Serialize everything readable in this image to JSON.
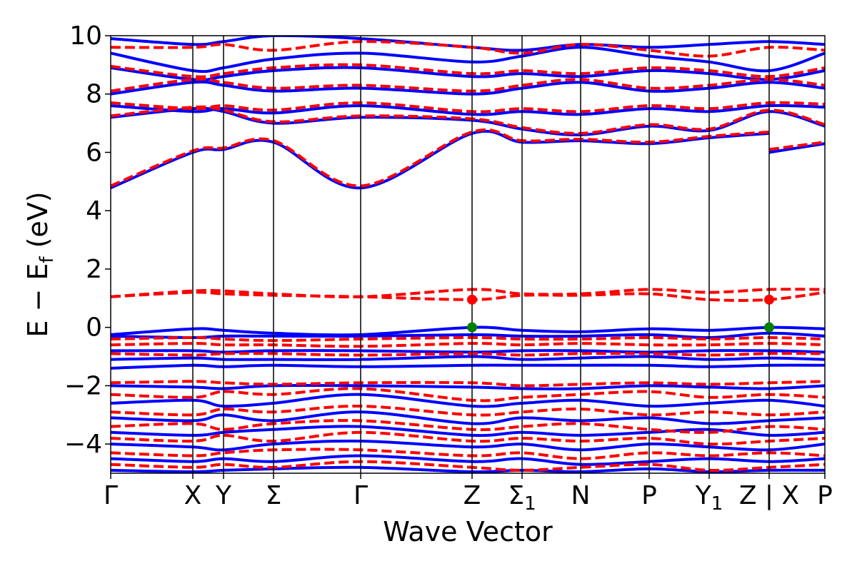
{
  "chart_data": {
    "type": "line",
    "xlabel": "Wave Vector",
    "ylabel_parts": {
      "main": "E − E",
      "sub": "f",
      "unit": "(eV)"
    },
    "ylim": [
      -5,
      10
    ],
    "yticks": [
      {
        "value": 10,
        "label": "10"
      },
      {
        "value": 8,
        "label": "8"
      },
      {
        "value": 6,
        "label": "6"
      },
      {
        "value": 4,
        "label": "4"
      },
      {
        "value": 2,
        "label": "2"
      },
      {
        "value": 0,
        "label": "0"
      },
      {
        "value": -2,
        "label": "−2"
      },
      {
        "value": -4,
        "label": "−4"
      }
    ],
    "kpoints": [
      {
        "label": "Γ",
        "pos": 0.0
      },
      {
        "label": "X",
        "pos": 0.115
      },
      {
        "label": "Y",
        "pos": 0.158
      },
      {
        "label": "Σ",
        "pos": 0.228
      },
      {
        "label": "Γ",
        "pos": 0.35
      },
      {
        "label": "Z",
        "pos": 0.506
      },
      {
        "label": "Σ",
        "sub": "1",
        "pos": 0.576
      },
      {
        "label": "N",
        "pos": 0.658
      },
      {
        "label": "P",
        "pos": 0.754
      },
      {
        "label": "Y",
        "sub": "1",
        "pos": 0.838
      },
      {
        "label": "Z | X",
        "pos": 0.922
      },
      {
        "label": "P",
        "pos": 1.0
      }
    ],
    "colors": {
      "solid_series": "#0000ff",
      "dashed_series": "#ff0000",
      "cbm": "#ff0000",
      "vbm": "#008000"
    },
    "markers": [
      {
        "kind": "cbm",
        "pos": 0.506,
        "energy": 0.95
      },
      {
        "kind": "vbm",
        "pos": 0.506,
        "energy": 0.0
      },
      {
        "kind": "cbm",
        "pos": 0.922,
        "energy": 0.95
      },
      {
        "kind": "vbm",
        "pos": 0.922,
        "energy": 0.0
      }
    ],
    "series": [
      {
        "style": "solid",
        "x": [
          0,
          0.115,
          0.158,
          0.228,
          0.35,
          0.506,
          0.576,
          0.658,
          0.754,
          0.838,
          0.922
        ],
        "y": [
          4.78,
          6.0,
          6.1,
          6.35,
          4.78,
          6.65,
          6.35,
          6.4,
          6.3,
          6.5,
          6.65
        ]
      },
      {
        "style": "solid",
        "x": [
          0.922,
          1.0
        ],
        "y": [
          6.0,
          6.3
        ]
      },
      {
        "style": "dashed",
        "x": [
          0,
          0.115,
          0.158,
          0.228,
          0.35,
          0.506,
          0.576,
          0.658,
          0.754,
          0.838,
          0.922
        ],
        "y": [
          4.85,
          6.05,
          6.15,
          6.4,
          4.85,
          6.7,
          6.4,
          6.45,
          6.35,
          6.55,
          6.7
        ]
      },
      {
        "style": "dashed",
        "x": [
          0.922,
          1.0
        ],
        "y": [
          6.1,
          6.35
        ]
      },
      {
        "style": "solid",
        "x": [
          0,
          0.115,
          0.158,
          0.228,
          0.35,
          0.506,
          0.576,
          0.658,
          0.754,
          0.838,
          0.922,
          1.0
        ],
        "y": [
          7.2,
          7.5,
          7.4,
          7.0,
          7.2,
          7.1,
          6.8,
          6.6,
          6.9,
          6.75,
          7.4,
          6.9
        ]
      },
      {
        "style": "dashed",
        "x": [
          0,
          0.115,
          0.158,
          0.228,
          0.35,
          0.506,
          0.576,
          0.658,
          0.754,
          0.838,
          0.922,
          1.0
        ],
        "y": [
          7.25,
          7.55,
          7.45,
          7.05,
          7.25,
          7.15,
          6.85,
          6.65,
          6.95,
          6.8,
          7.45,
          6.95
        ]
      },
      {
        "style": "solid",
        "x": [
          0,
          0.115,
          0.158,
          0.228,
          0.35,
          0.506,
          0.576,
          0.658,
          0.754,
          0.838,
          0.922,
          1.0
        ],
        "y": [
          7.6,
          7.4,
          7.5,
          7.35,
          7.6,
          7.3,
          7.4,
          7.3,
          7.5,
          7.4,
          7.6,
          7.55
        ]
      },
      {
        "style": "dashed",
        "x": [
          0,
          0.115,
          0.158,
          0.228,
          0.35,
          0.506,
          0.576,
          0.658,
          0.754,
          0.838,
          0.922,
          1.0
        ],
        "y": [
          7.7,
          7.5,
          7.6,
          7.45,
          7.7,
          7.4,
          7.5,
          7.4,
          7.6,
          7.5,
          7.7,
          7.65
        ]
      },
      {
        "style": "solid",
        "x": [
          0,
          0.115,
          0.158,
          0.228,
          0.35,
          0.506,
          0.576,
          0.658,
          0.754,
          0.838,
          0.922,
          1.0
        ],
        "y": [
          8.0,
          8.4,
          8.3,
          8.1,
          8.2,
          8.0,
          8.2,
          8.4,
          8.1,
          8.2,
          8.4,
          8.2
        ]
      },
      {
        "style": "dashed",
        "x": [
          0,
          0.115,
          0.158,
          0.228,
          0.35,
          0.506,
          0.576,
          0.658,
          0.754,
          0.838,
          0.922,
          1.0
        ],
        "y": [
          8.1,
          8.5,
          8.4,
          8.2,
          8.3,
          8.1,
          8.3,
          8.5,
          8.2,
          8.3,
          8.5,
          8.3
        ]
      },
      {
        "style": "solid",
        "x": [
          0,
          0.115,
          0.158,
          0.228,
          0.35,
          0.506,
          0.576,
          0.658,
          0.754,
          0.838,
          0.922,
          1.0
        ],
        "y": [
          8.9,
          8.5,
          8.6,
          8.8,
          8.9,
          8.6,
          8.7,
          8.6,
          8.8,
          8.7,
          8.5,
          8.8
        ]
      },
      {
        "style": "dashed",
        "x": [
          0,
          0.115,
          0.158,
          0.228,
          0.35,
          0.506,
          0.576,
          0.658,
          0.754,
          0.838,
          0.922,
          1.0
        ],
        "y": [
          8.95,
          8.6,
          8.7,
          8.9,
          9.0,
          8.7,
          8.8,
          8.7,
          8.9,
          8.8,
          8.6,
          8.9
        ]
      },
      {
        "style": "solid",
        "x": [
          0,
          0.115,
          0.158,
          0.228,
          0.35,
          0.506,
          0.576,
          0.658,
          0.754,
          0.838,
          0.922,
          1.0
        ],
        "y": [
          9.4,
          8.8,
          8.9,
          9.2,
          9.4,
          9.1,
          9.3,
          9.6,
          9.3,
          9.1,
          8.8,
          9.4
        ]
      },
      {
        "style": "dashed",
        "x": [
          0,
          0.115,
          0.158,
          0.228,
          0.35,
          0.506,
          0.576,
          0.658,
          0.754,
          0.838,
          0.922,
          1.0
        ],
        "y": [
          9.6,
          9.6,
          9.7,
          9.5,
          9.8,
          9.6,
          9.4,
          9.7,
          9.5,
          9.3,
          9.6,
          9.5
        ]
      },
      {
        "style": "solid",
        "x": [
          0,
          0.115,
          0.158,
          0.228,
          0.35,
          0.506,
          0.576,
          0.658,
          0.754,
          0.838,
          0.922,
          1.0
        ],
        "y": [
          9.9,
          9.7,
          9.8,
          10.0,
          9.9,
          9.6,
          9.5,
          9.7,
          9.6,
          9.7,
          9.8,
          9.7
        ]
      },
      {
        "style": "dashed",
        "x": [
          0,
          0.115,
          0.158,
          0.228,
          0.35,
          0.506,
          0.576,
          0.658,
          0.754,
          0.838,
          0.922,
          1.0
        ],
        "y": [
          1.05,
          1.25,
          1.25,
          1.15,
          1.05,
          1.3,
          1.15,
          1.15,
          1.3,
          1.2,
          1.3,
          1.3
        ]
      },
      {
        "style": "dashed",
        "x": [
          0,
          0.115,
          0.158,
          0.228,
          0.35,
          0.506,
          0.576,
          0.658,
          0.754,
          0.838,
          0.922,
          1.0
        ],
        "y": [
          1.05,
          1.2,
          1.15,
          1.1,
          1.05,
          0.95,
          1.1,
          1.1,
          1.15,
          0.95,
          0.95,
          1.2
        ]
      },
      {
        "style": "solid",
        "x": [
          0,
          0.115,
          0.158,
          0.228,
          0.35,
          0.506,
          0.576,
          0.658,
          0.754,
          0.838,
          0.922,
          1.0
        ],
        "y": [
          -0.25,
          -0.05,
          -0.1,
          -0.2,
          -0.25,
          0.0,
          -0.1,
          -0.15,
          -0.05,
          -0.1,
          0.0,
          -0.05
        ]
      },
      {
        "style": "solid",
        "x": [
          0,
          0.115,
          0.158,
          0.228,
          0.35,
          0.506,
          0.576,
          0.658,
          0.754,
          0.838,
          0.922,
          1.0
        ],
        "y": [
          -0.3,
          -0.35,
          -0.3,
          -0.3,
          -0.3,
          -0.25,
          -0.3,
          -0.3,
          -0.25,
          -0.35,
          -0.2,
          -0.3
        ]
      },
      {
        "style": "dashed",
        "x": [
          0,
          0.115,
          0.158,
          0.228,
          0.35,
          0.506,
          0.576,
          0.658,
          0.754,
          0.838,
          0.922,
          1.0
        ],
        "y": [
          -0.4,
          -0.35,
          -0.4,
          -0.45,
          -0.4,
          -0.35,
          -0.4,
          -0.4,
          -0.35,
          -0.4,
          -0.35,
          -0.4
        ]
      },
      {
        "style": "dashed",
        "x": [
          0,
          0.115,
          0.158,
          0.228,
          0.35,
          0.506,
          0.576,
          0.658,
          0.754,
          0.838,
          0.922,
          1.0
        ],
        "y": [
          -0.6,
          -0.55,
          -0.6,
          -0.6,
          -0.65,
          -0.55,
          -0.6,
          -0.55,
          -0.6,
          -0.6,
          -0.55,
          -0.6
        ]
      },
      {
        "style": "solid",
        "x": [
          0,
          0.115,
          0.158,
          0.228,
          0.35,
          0.506,
          0.576,
          0.658,
          0.754,
          0.838,
          0.922,
          1.0
        ],
        "y": [
          -0.8,
          -0.8,
          -0.85,
          -0.8,
          -0.8,
          -0.85,
          -0.8,
          -0.8,
          -0.85,
          -0.8,
          -0.8,
          -0.85
        ]
      },
      {
        "style": "dashed",
        "x": [
          0,
          0.115,
          0.158,
          0.228,
          0.35,
          0.506,
          0.576,
          0.658,
          0.754,
          0.838,
          0.922,
          1.0
        ],
        "y": [
          -0.9,
          -0.95,
          -0.9,
          -0.9,
          -0.95,
          -0.9,
          -0.95,
          -0.9,
          -0.9,
          -0.95,
          -0.9,
          -0.9
        ]
      },
      {
        "style": "solid",
        "x": [
          0,
          0.115,
          0.158,
          0.228,
          0.35,
          0.506,
          0.576,
          0.658,
          0.754,
          0.838,
          0.922,
          1.0
        ],
        "y": [
          -1.1,
          -1.05,
          -1.1,
          -1.1,
          -1.1,
          -1.0,
          -1.1,
          -1.05,
          -1.0,
          -1.1,
          -1.05,
          -1.1
        ]
      },
      {
        "style": "solid",
        "x": [
          0,
          0.115,
          0.158,
          0.228,
          0.35,
          0.506,
          0.576,
          0.658,
          0.754,
          0.838,
          0.922,
          1.0
        ],
        "y": [
          -1.4,
          -1.3,
          -1.35,
          -1.3,
          -1.35,
          -1.3,
          -1.3,
          -1.3,
          -1.3,
          -1.35,
          -1.3,
          -1.3
        ]
      },
      {
        "style": "dashed",
        "x": [
          0,
          0.115,
          0.158,
          0.228,
          0.35,
          0.506,
          0.576,
          0.658,
          0.754,
          0.838,
          0.922,
          1.0
        ],
        "y": [
          -1.9,
          -1.85,
          -1.9,
          -1.95,
          -1.9,
          -1.9,
          -2.0,
          -1.95,
          -1.9,
          -1.95,
          -1.9,
          -1.85
        ]
      },
      {
        "style": "solid",
        "x": [
          0,
          0.115,
          0.158,
          0.228,
          0.35,
          0.506,
          0.576,
          0.658,
          0.754,
          0.838,
          0.922,
          1.0
        ],
        "y": [
          -2.0,
          -2.05,
          -2.1,
          -2.0,
          -2.0,
          -2.05,
          -2.1,
          -2.1,
          -2.0,
          -2.05,
          -2.1,
          -2.0
        ]
      },
      {
        "style": "dashed",
        "x": [
          0,
          0.115,
          0.158,
          0.228,
          0.35,
          0.506,
          0.576,
          0.658,
          0.754,
          0.838,
          0.922,
          1.0
        ],
        "y": [
          -2.3,
          -2.4,
          -2.2,
          -2.3,
          -2.1,
          -2.5,
          -2.4,
          -2.3,
          -2.2,
          -2.4,
          -2.3,
          -2.4
        ]
      },
      {
        "style": "solid",
        "x": [
          0,
          0.115,
          0.158,
          0.228,
          0.35,
          0.506,
          0.576,
          0.658,
          0.754,
          0.838,
          0.922,
          1.0
        ],
        "y": [
          -2.6,
          -2.5,
          -2.7,
          -2.6,
          -2.3,
          -2.7,
          -2.6,
          -2.5,
          -2.7,
          -2.6,
          -2.5,
          -2.7
        ]
      },
      {
        "style": "dashed",
        "x": [
          0,
          0.115,
          0.158,
          0.228,
          0.35,
          0.506,
          0.576,
          0.658,
          0.754,
          0.838,
          0.922,
          1.0
        ],
        "y": [
          -2.9,
          -3.0,
          -2.8,
          -2.9,
          -2.7,
          -3.0,
          -2.9,
          -2.8,
          -3.0,
          -2.9,
          -3.0,
          -2.9
        ]
      },
      {
        "style": "solid",
        "x": [
          0,
          0.115,
          0.158,
          0.228,
          0.35,
          0.506,
          0.576,
          0.658,
          0.754,
          0.838,
          0.922,
          1.0
        ],
        "y": [
          -3.1,
          -3.2,
          -3.0,
          -3.2,
          -2.9,
          -3.3,
          -3.1,
          -3.2,
          -3.1,
          -3.3,
          -3.2,
          -3.1
        ]
      },
      {
        "style": "dashed",
        "x": [
          0,
          0.115,
          0.158,
          0.228,
          0.35,
          0.506,
          0.576,
          0.658,
          0.754,
          0.838,
          0.922,
          1.0
        ],
        "y": [
          -3.4,
          -3.3,
          -3.5,
          -3.3,
          -3.2,
          -3.5,
          -3.4,
          -3.3,
          -3.5,
          -3.6,
          -3.4,
          -3.5
        ]
      },
      {
        "style": "solid",
        "x": [
          0,
          0.115,
          0.158,
          0.228,
          0.35,
          0.506,
          0.576,
          0.658,
          0.754,
          0.838,
          0.922,
          1.0
        ],
        "y": [
          -3.6,
          -3.7,
          -3.6,
          -3.5,
          -3.4,
          -3.7,
          -3.6,
          -3.7,
          -3.6,
          -3.5,
          -3.7,
          -3.6
        ]
      },
      {
        "style": "dashed",
        "x": [
          0,
          0.115,
          0.158,
          0.228,
          0.35,
          0.506,
          0.576,
          0.658,
          0.754,
          0.838,
          0.922,
          1.0
        ],
        "y": [
          -3.8,
          -3.9,
          -3.7,
          -3.9,
          -3.6,
          -3.9,
          -3.8,
          -3.9,
          -3.8,
          -4.0,
          -3.9,
          -3.8
        ]
      },
      {
        "style": "solid",
        "x": [
          0,
          0.115,
          0.158,
          0.228,
          0.35,
          0.506,
          0.576,
          0.658,
          0.754,
          0.838,
          0.922,
          1.0
        ],
        "y": [
          -4.0,
          -4.1,
          -4.2,
          -4.0,
          -3.9,
          -4.1,
          -4.0,
          -4.2,
          -4.0,
          -4.1,
          -4.2,
          -4.0
        ]
      },
      {
        "style": "dashed",
        "x": [
          0,
          0.115,
          0.158,
          0.228,
          0.35,
          0.506,
          0.576,
          0.658,
          0.754,
          0.838,
          0.922,
          1.0
        ],
        "y": [
          -4.3,
          -4.4,
          -4.3,
          -4.2,
          -4.2,
          -4.4,
          -4.3,
          -4.5,
          -4.3,
          -4.4,
          -4.3,
          -4.4
        ]
      },
      {
        "style": "solid",
        "x": [
          0,
          0.115,
          0.158,
          0.228,
          0.35,
          0.506,
          0.576,
          0.658,
          0.754,
          0.838,
          0.922,
          1.0
        ],
        "y": [
          -4.5,
          -4.6,
          -4.5,
          -4.6,
          -4.4,
          -4.6,
          -4.5,
          -4.7,
          -4.6,
          -4.5,
          -4.6,
          -4.5
        ]
      },
      {
        "style": "dashed",
        "x": [
          0,
          0.115,
          0.158,
          0.228,
          0.35,
          0.506,
          0.576,
          0.658,
          0.754,
          0.838,
          0.922,
          1.0
        ],
        "y": [
          -4.7,
          -4.8,
          -4.7,
          -4.8,
          -4.6,
          -4.8,
          -4.9,
          -4.8,
          -4.7,
          -4.9,
          -4.8,
          -4.7
        ]
      },
      {
        "style": "solid",
        "x": [
          0,
          0.115,
          0.158,
          0.228,
          0.35,
          0.506,
          0.576,
          0.658,
          0.754,
          0.838,
          0.922,
          1.0
        ],
        "y": [
          -4.9,
          -4.95,
          -4.9,
          -4.85,
          -4.8,
          -4.95,
          -4.9,
          -4.95,
          -4.85,
          -4.95,
          -4.9,
          -4.9
        ]
      }
    ]
  }
}
